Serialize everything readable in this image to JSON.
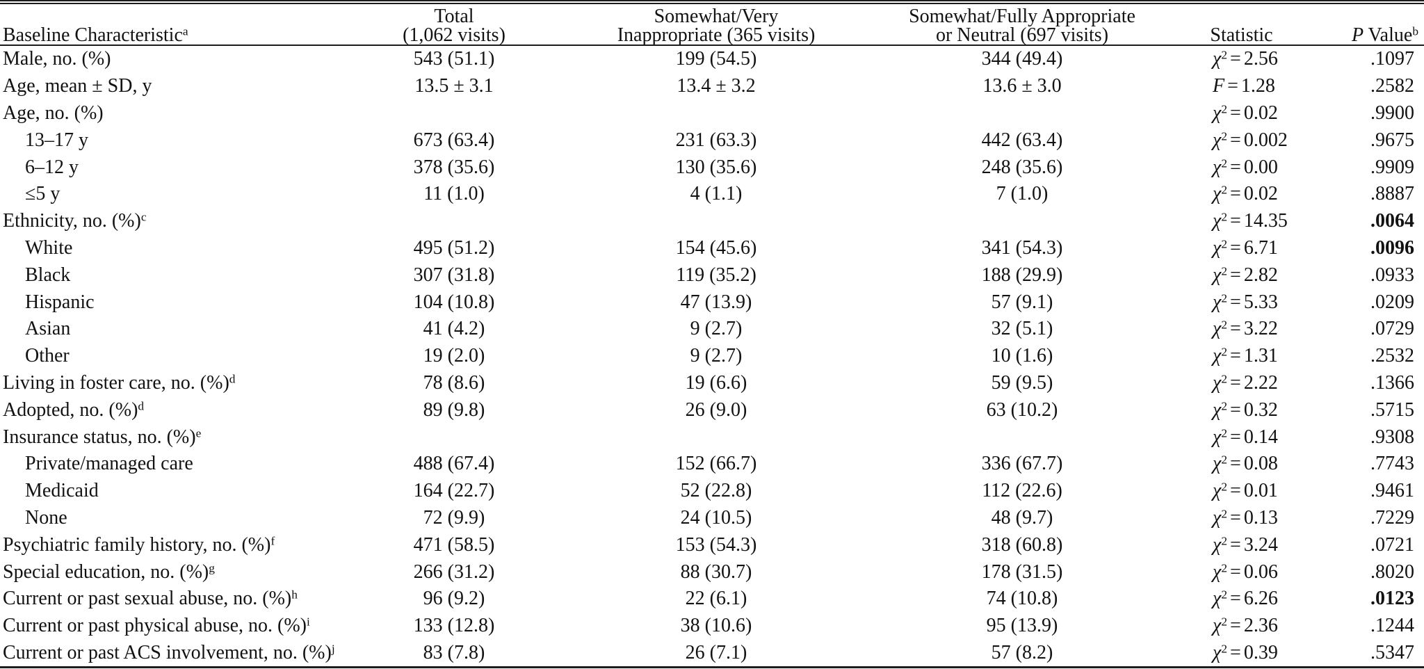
{
  "page": {
    "background": "#ffffff",
    "text_color": "#121212",
    "rule_color": "#1c1c1c"
  },
  "table": {
    "meta": {
      "equals": "="
    },
    "header": {
      "label": {
        "text": "Baseline Characteristic",
        "sup": "a"
      },
      "total": {
        "line1": "Total",
        "line2": "(1,062 visits)"
      },
      "inappropriate": {
        "line1": "Somewhat/Very",
        "line2": "Inappropriate (365 visits)"
      },
      "appropriate": {
        "line1": "Somewhat/Fully Appropriate",
        "line2": "or Neutral (697 visits)"
      },
      "statistic": "Statistic",
      "p_value": {
        "italic": "P",
        "rest": " Value",
        "sup": "b"
      }
    },
    "rows": [
      {
        "label": "Male, no. (%)",
        "sup": "",
        "indent": false,
        "total": "543 (51.1)",
        "inappropriate": "199 (54.5)",
        "appropriate": "344 (49.4)",
        "stat": {
          "symbol": "χ",
          "sup": "2",
          "value": "2.56"
        },
        "p": ".1097",
        "p_bold": false
      },
      {
        "label": "Age, mean ± SD, y",
        "sup": "",
        "indent": false,
        "total": "13.5 ± 3.1",
        "inappropriate": "13.4 ± 3.2",
        "appropriate": "13.6 ± 3.0",
        "stat": {
          "symbol": "F",
          "sup": "",
          "value": "1.28"
        },
        "p": ".2582",
        "p_bold": false
      },
      {
        "label": "Age, no. (%)",
        "sup": "",
        "indent": false,
        "total": "",
        "inappropriate": "",
        "appropriate": "",
        "stat": {
          "symbol": "χ",
          "sup": "2",
          "value": "0.02"
        },
        "p": ".9900",
        "p_bold": false
      },
      {
        "label": "13–17 y",
        "sup": "",
        "indent": true,
        "total": "673 (63.4)",
        "inappropriate": "231 (63.3)",
        "appropriate": "442 (63.4)",
        "stat": {
          "symbol": "χ",
          "sup": "2",
          "value": "0.002"
        },
        "p": ".9675",
        "p_bold": false
      },
      {
        "label": "6–12 y",
        "sup": "",
        "indent": true,
        "total": "378 (35.6)",
        "inappropriate": "130 (35.6)",
        "appropriate": "248 (35.6)",
        "stat": {
          "symbol": "χ",
          "sup": "2",
          "value": "0.00"
        },
        "p": ".9909",
        "p_bold": false
      },
      {
        "label": "≤5 y",
        "sup": "",
        "indent": true,
        "total": "11 (1.0)",
        "inappropriate": "4 (1.1)",
        "appropriate": "7 (1.0)",
        "stat": {
          "symbol": "χ",
          "sup": "2",
          "value": "0.02"
        },
        "p": ".8887",
        "p_bold": false
      },
      {
        "label": "Ethnicity, no. (%)",
        "sup": "c",
        "indent": false,
        "total": "",
        "inappropriate": "",
        "appropriate": "",
        "stat": {
          "symbol": "χ",
          "sup": "2",
          "value": "14.35"
        },
        "p": ".0064",
        "p_bold": true
      },
      {
        "label": "White",
        "sup": "",
        "indent": true,
        "total": "495 (51.2)",
        "inappropriate": "154 (45.6)",
        "appropriate": "341 (54.3)",
        "stat": {
          "symbol": "χ",
          "sup": "2",
          "value": "6.71"
        },
        "p": ".0096",
        "p_bold": true
      },
      {
        "label": "Black",
        "sup": "",
        "indent": true,
        "total": "307 (31.8)",
        "inappropriate": "119 (35.2)",
        "appropriate": "188 (29.9)",
        "stat": {
          "symbol": "χ",
          "sup": "2",
          "value": "2.82"
        },
        "p": ".0933",
        "p_bold": false
      },
      {
        "label": "Hispanic",
        "sup": "",
        "indent": true,
        "total": "104 (10.8)",
        "inappropriate": "47 (13.9)",
        "appropriate": "57 (9.1)",
        "stat": {
          "symbol": "χ",
          "sup": "2",
          "value": "5.33"
        },
        "p": ".0209",
        "p_bold": false
      },
      {
        "label": "Asian",
        "sup": "",
        "indent": true,
        "total": "41 (4.2)",
        "inappropriate": "9 (2.7)",
        "appropriate": "32 (5.1)",
        "stat": {
          "symbol": "χ",
          "sup": "2",
          "value": "3.22"
        },
        "p": ".0729",
        "p_bold": false
      },
      {
        "label": "Other",
        "sup": "",
        "indent": true,
        "total": "19 (2.0)",
        "inappropriate": "9 (2.7)",
        "appropriate": "10 (1.6)",
        "stat": {
          "symbol": "χ",
          "sup": "2",
          "value": "1.31"
        },
        "p": ".2532",
        "p_bold": false
      },
      {
        "label": "Living in foster care, no. (%)",
        "sup": "d",
        "indent": false,
        "total": "78 (8.6)",
        "inappropriate": "19 (6.6)",
        "appropriate": "59 (9.5)",
        "stat": {
          "symbol": "χ",
          "sup": "2",
          "value": "2.22"
        },
        "p": ".1366",
        "p_bold": false
      },
      {
        "label": "Adopted, no. (%)",
        "sup": "d",
        "indent": false,
        "total": "89 (9.8)",
        "inappropriate": "26 (9.0)",
        "appropriate": "63 (10.2)",
        "stat": {
          "symbol": "χ",
          "sup": "2",
          "value": "0.32"
        },
        "p": ".5715",
        "p_bold": false
      },
      {
        "label": "Insurance status, no. (%)",
        "sup": "e",
        "indent": false,
        "total": "",
        "inappropriate": "",
        "appropriate": "",
        "stat": {
          "symbol": "χ",
          "sup": "2",
          "value": "0.14"
        },
        "p": ".9308",
        "p_bold": false
      },
      {
        "label": "Private/managed care",
        "sup": "",
        "indent": true,
        "total": "488 (67.4)",
        "inappropriate": "152 (66.7)",
        "appropriate": "336 (67.7)",
        "stat": {
          "symbol": "χ",
          "sup": "2",
          "value": "0.08"
        },
        "p": ".7743",
        "p_bold": false
      },
      {
        "label": "Medicaid",
        "sup": "",
        "indent": true,
        "total": "164 (22.7)",
        "inappropriate": "52 (22.8)",
        "appropriate": "112 (22.6)",
        "stat": {
          "symbol": "χ",
          "sup": "2",
          "value": "0.01"
        },
        "p": ".9461",
        "p_bold": false
      },
      {
        "label": "None",
        "sup": "",
        "indent": true,
        "total": "72 (9.9)",
        "inappropriate": "24 (10.5)",
        "appropriate": "48 (9.7)",
        "stat": {
          "symbol": "χ",
          "sup": "2",
          "value": "0.13"
        },
        "p": ".7229",
        "p_bold": false
      },
      {
        "label": "Psychiatric family history, no. (%)",
        "sup": "f",
        "indent": false,
        "total": "471 (58.5)",
        "inappropriate": "153 (54.3)",
        "appropriate": "318 (60.8)",
        "stat": {
          "symbol": "χ",
          "sup": "2",
          "value": "3.24"
        },
        "p": ".0721",
        "p_bold": false
      },
      {
        "label": "Special education, no. (%)",
        "sup": "g",
        "indent": false,
        "total": "266 (31.2)",
        "inappropriate": "88 (30.7)",
        "appropriate": "178 (31.5)",
        "stat": {
          "symbol": "χ",
          "sup": "2",
          "value": "0.06"
        },
        "p": ".8020",
        "p_bold": false
      },
      {
        "label": "Current or past sexual abuse, no. (%)",
        "sup": "h",
        "indent": false,
        "total": "96 (9.2)",
        "inappropriate": "22 (6.1)",
        "appropriate": "74 (10.8)",
        "stat": {
          "symbol": "χ",
          "sup": "2",
          "value": "6.26"
        },
        "p": ".0123",
        "p_bold": true
      },
      {
        "label": "Current or past physical abuse, no. (%)",
        "sup": "i",
        "indent": false,
        "total": "133 (12.8)",
        "inappropriate": "38 (10.6)",
        "appropriate": "95 (13.9)",
        "stat": {
          "symbol": "χ",
          "sup": "2",
          "value": "2.36"
        },
        "p": ".1244",
        "p_bold": false
      },
      {
        "label": "Current or past ACS involvement, no. (%)",
        "sup": "j",
        "indent": false,
        "total": "83 (7.8)",
        "inappropriate": "26 (7.1)",
        "appropriate": "57 (8.2)",
        "stat": {
          "symbol": "χ",
          "sup": "2",
          "value": "0.39"
        },
        "p": ".5347",
        "p_bold": false
      }
    ]
  }
}
